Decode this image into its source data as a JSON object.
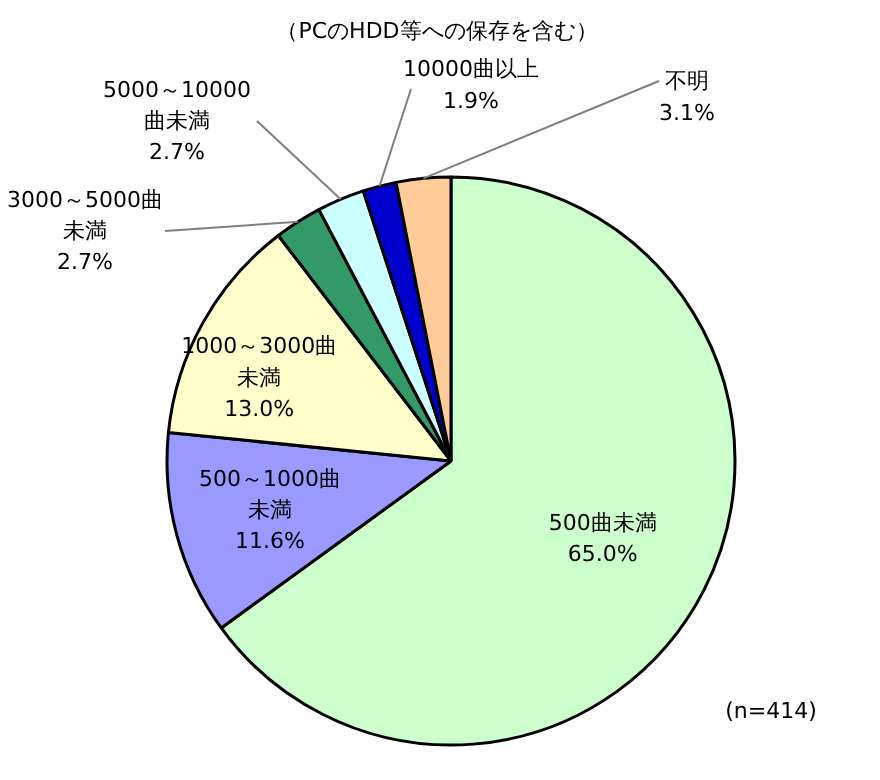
{
  "chart_data": {
    "type": "pie",
    "subtitle": "（PCのHDD等への保存を含む）",
    "categories": [
      "500曲未満",
      "500～1000曲未満",
      "1000～3000曲未満",
      "3000～5000曲未満",
      "5000～10000曲未満",
      "10000曲以上",
      "不明"
    ],
    "values": [
      65.0,
      11.6,
      13.0,
      2.7,
      2.7,
      1.9,
      3.1
    ],
    "colors": [
      "#ccffcc",
      "#9999ff",
      "#ffffcc",
      "#339966",
      "#ccffff",
      "#0000cc",
      "#ffcc99"
    ],
    "value_labels": [
      "65.0%",
      "11.6%",
      "13.0%",
      "2.7%",
      "2.7%",
      "1.9%",
      "3.1%"
    ],
    "annotations": [
      "(n=414)"
    ]
  }
}
